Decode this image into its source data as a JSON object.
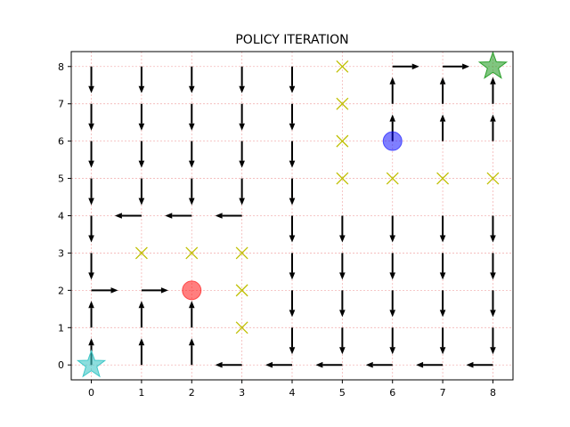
{
  "chart_data": {
    "type": "scatter",
    "title": "POLICY ITERATION",
    "xlabel": "",
    "ylabel": "",
    "xlim": [
      -0.4,
      8.4
    ],
    "ylim": [
      -0.4,
      8.4
    ],
    "x_ticks": [
      "0",
      "1",
      "2",
      "3",
      "4",
      "5",
      "6",
      "7",
      "8"
    ],
    "y_ticks": [
      "0",
      "1",
      "2",
      "3",
      "4",
      "5",
      "6",
      "7",
      "8"
    ],
    "grid": true,
    "grid_color": "#f4b6b6",
    "arrow_color": "#000000",
    "policy_arrows": [
      {
        "x": 0,
        "y": 8,
        "dir": "down"
      },
      {
        "x": 1,
        "y": 8,
        "dir": "down"
      },
      {
        "x": 2,
        "y": 8,
        "dir": "down"
      },
      {
        "x": 3,
        "y": 8,
        "dir": "down"
      },
      {
        "x": 4,
        "y": 8,
        "dir": "down"
      },
      {
        "x": 6,
        "y": 8,
        "dir": "right"
      },
      {
        "x": 7,
        "y": 8,
        "dir": "right"
      },
      {
        "x": 0,
        "y": 7,
        "dir": "down"
      },
      {
        "x": 1,
        "y": 7,
        "dir": "down"
      },
      {
        "x": 2,
        "y": 7,
        "dir": "down"
      },
      {
        "x": 3,
        "y": 7,
        "dir": "down"
      },
      {
        "x": 4,
        "y": 7,
        "dir": "down"
      },
      {
        "x": 6,
        "y": 7,
        "dir": "up"
      },
      {
        "x": 7,
        "y": 7,
        "dir": "up"
      },
      {
        "x": 8,
        "y": 7,
        "dir": "up"
      },
      {
        "x": 0,
        "y": 6,
        "dir": "down"
      },
      {
        "x": 1,
        "y": 6,
        "dir": "down"
      },
      {
        "x": 2,
        "y": 6,
        "dir": "down"
      },
      {
        "x": 3,
        "y": 6,
        "dir": "down"
      },
      {
        "x": 4,
        "y": 6,
        "dir": "down"
      },
      {
        "x": 6,
        "y": 6,
        "dir": "up"
      },
      {
        "x": 7,
        "y": 6,
        "dir": "up"
      },
      {
        "x": 8,
        "y": 6,
        "dir": "up"
      },
      {
        "x": 0,
        "y": 5,
        "dir": "down"
      },
      {
        "x": 1,
        "y": 5,
        "dir": "down"
      },
      {
        "x": 2,
        "y": 5,
        "dir": "down"
      },
      {
        "x": 3,
        "y": 5,
        "dir": "down"
      },
      {
        "x": 4,
        "y": 5,
        "dir": "down"
      },
      {
        "x": 0,
        "y": 4,
        "dir": "down"
      },
      {
        "x": 1,
        "y": 4,
        "dir": "left"
      },
      {
        "x": 2,
        "y": 4,
        "dir": "left"
      },
      {
        "x": 3,
        "y": 4,
        "dir": "left"
      },
      {
        "x": 4,
        "y": 4,
        "dir": "down"
      },
      {
        "x": 5,
        "y": 4,
        "dir": "down"
      },
      {
        "x": 6,
        "y": 4,
        "dir": "down"
      },
      {
        "x": 7,
        "y": 4,
        "dir": "down"
      },
      {
        "x": 8,
        "y": 4,
        "dir": "down"
      },
      {
        "x": 0,
        "y": 3,
        "dir": "down"
      },
      {
        "x": 4,
        "y": 3,
        "dir": "down"
      },
      {
        "x": 5,
        "y": 3,
        "dir": "down"
      },
      {
        "x": 6,
        "y": 3,
        "dir": "down"
      },
      {
        "x": 7,
        "y": 3,
        "dir": "down"
      },
      {
        "x": 8,
        "y": 3,
        "dir": "down"
      },
      {
        "x": 0,
        "y": 2,
        "dir": "right"
      },
      {
        "x": 1,
        "y": 2,
        "dir": "right"
      },
      {
        "x": 4,
        "y": 2,
        "dir": "down"
      },
      {
        "x": 5,
        "y": 2,
        "dir": "down"
      },
      {
        "x": 6,
        "y": 2,
        "dir": "down"
      },
      {
        "x": 7,
        "y": 2,
        "dir": "down"
      },
      {
        "x": 8,
        "y": 2,
        "dir": "down"
      },
      {
        "x": 0,
        "y": 1,
        "dir": "up"
      },
      {
        "x": 1,
        "y": 1,
        "dir": "up"
      },
      {
        "x": 2,
        "y": 1,
        "dir": "up"
      },
      {
        "x": 4,
        "y": 1,
        "dir": "down"
      },
      {
        "x": 5,
        "y": 1,
        "dir": "down"
      },
      {
        "x": 6,
        "y": 1,
        "dir": "down"
      },
      {
        "x": 7,
        "y": 1,
        "dir": "down"
      },
      {
        "x": 8,
        "y": 1,
        "dir": "down"
      },
      {
        "x": 0,
        "y": 0,
        "dir": "up"
      },
      {
        "x": 1,
        "y": 0,
        "dir": "up"
      },
      {
        "x": 2,
        "y": 0,
        "dir": "up"
      },
      {
        "x": 3,
        "y": 0,
        "dir": "left"
      },
      {
        "x": 4,
        "y": 0,
        "dir": "left"
      },
      {
        "x": 5,
        "y": 0,
        "dir": "left"
      },
      {
        "x": 6,
        "y": 0,
        "dir": "left"
      },
      {
        "x": 7,
        "y": 0,
        "dir": "left"
      },
      {
        "x": 8,
        "y": 0,
        "dir": "left"
      }
    ],
    "obstacles": {
      "marker": "x",
      "color": "#bfbf00",
      "points": [
        {
          "x": 5,
          "y": 8
        },
        {
          "x": 5,
          "y": 7
        },
        {
          "x": 5,
          "y": 6
        },
        {
          "x": 5,
          "y": 5
        },
        {
          "x": 6,
          "y": 5
        },
        {
          "x": 7,
          "y": 5
        },
        {
          "x": 8,
          "y": 5
        },
        {
          "x": 1,
          "y": 3
        },
        {
          "x": 2,
          "y": 3
        },
        {
          "x": 3,
          "y": 3
        },
        {
          "x": 3,
          "y": 2
        },
        {
          "x": 3,
          "y": 1
        }
      ]
    },
    "markers": [
      {
        "type": "star",
        "x": 0,
        "y": 0,
        "color": "#40c8c8"
      },
      {
        "type": "star",
        "x": 8,
        "y": 8,
        "color": "#2ca02c"
      },
      {
        "type": "circle",
        "x": 2,
        "y": 2,
        "color": "#ff0000"
      },
      {
        "type": "circle",
        "x": 6,
        "y": 6,
        "color": "#0000ff"
      }
    ]
  }
}
